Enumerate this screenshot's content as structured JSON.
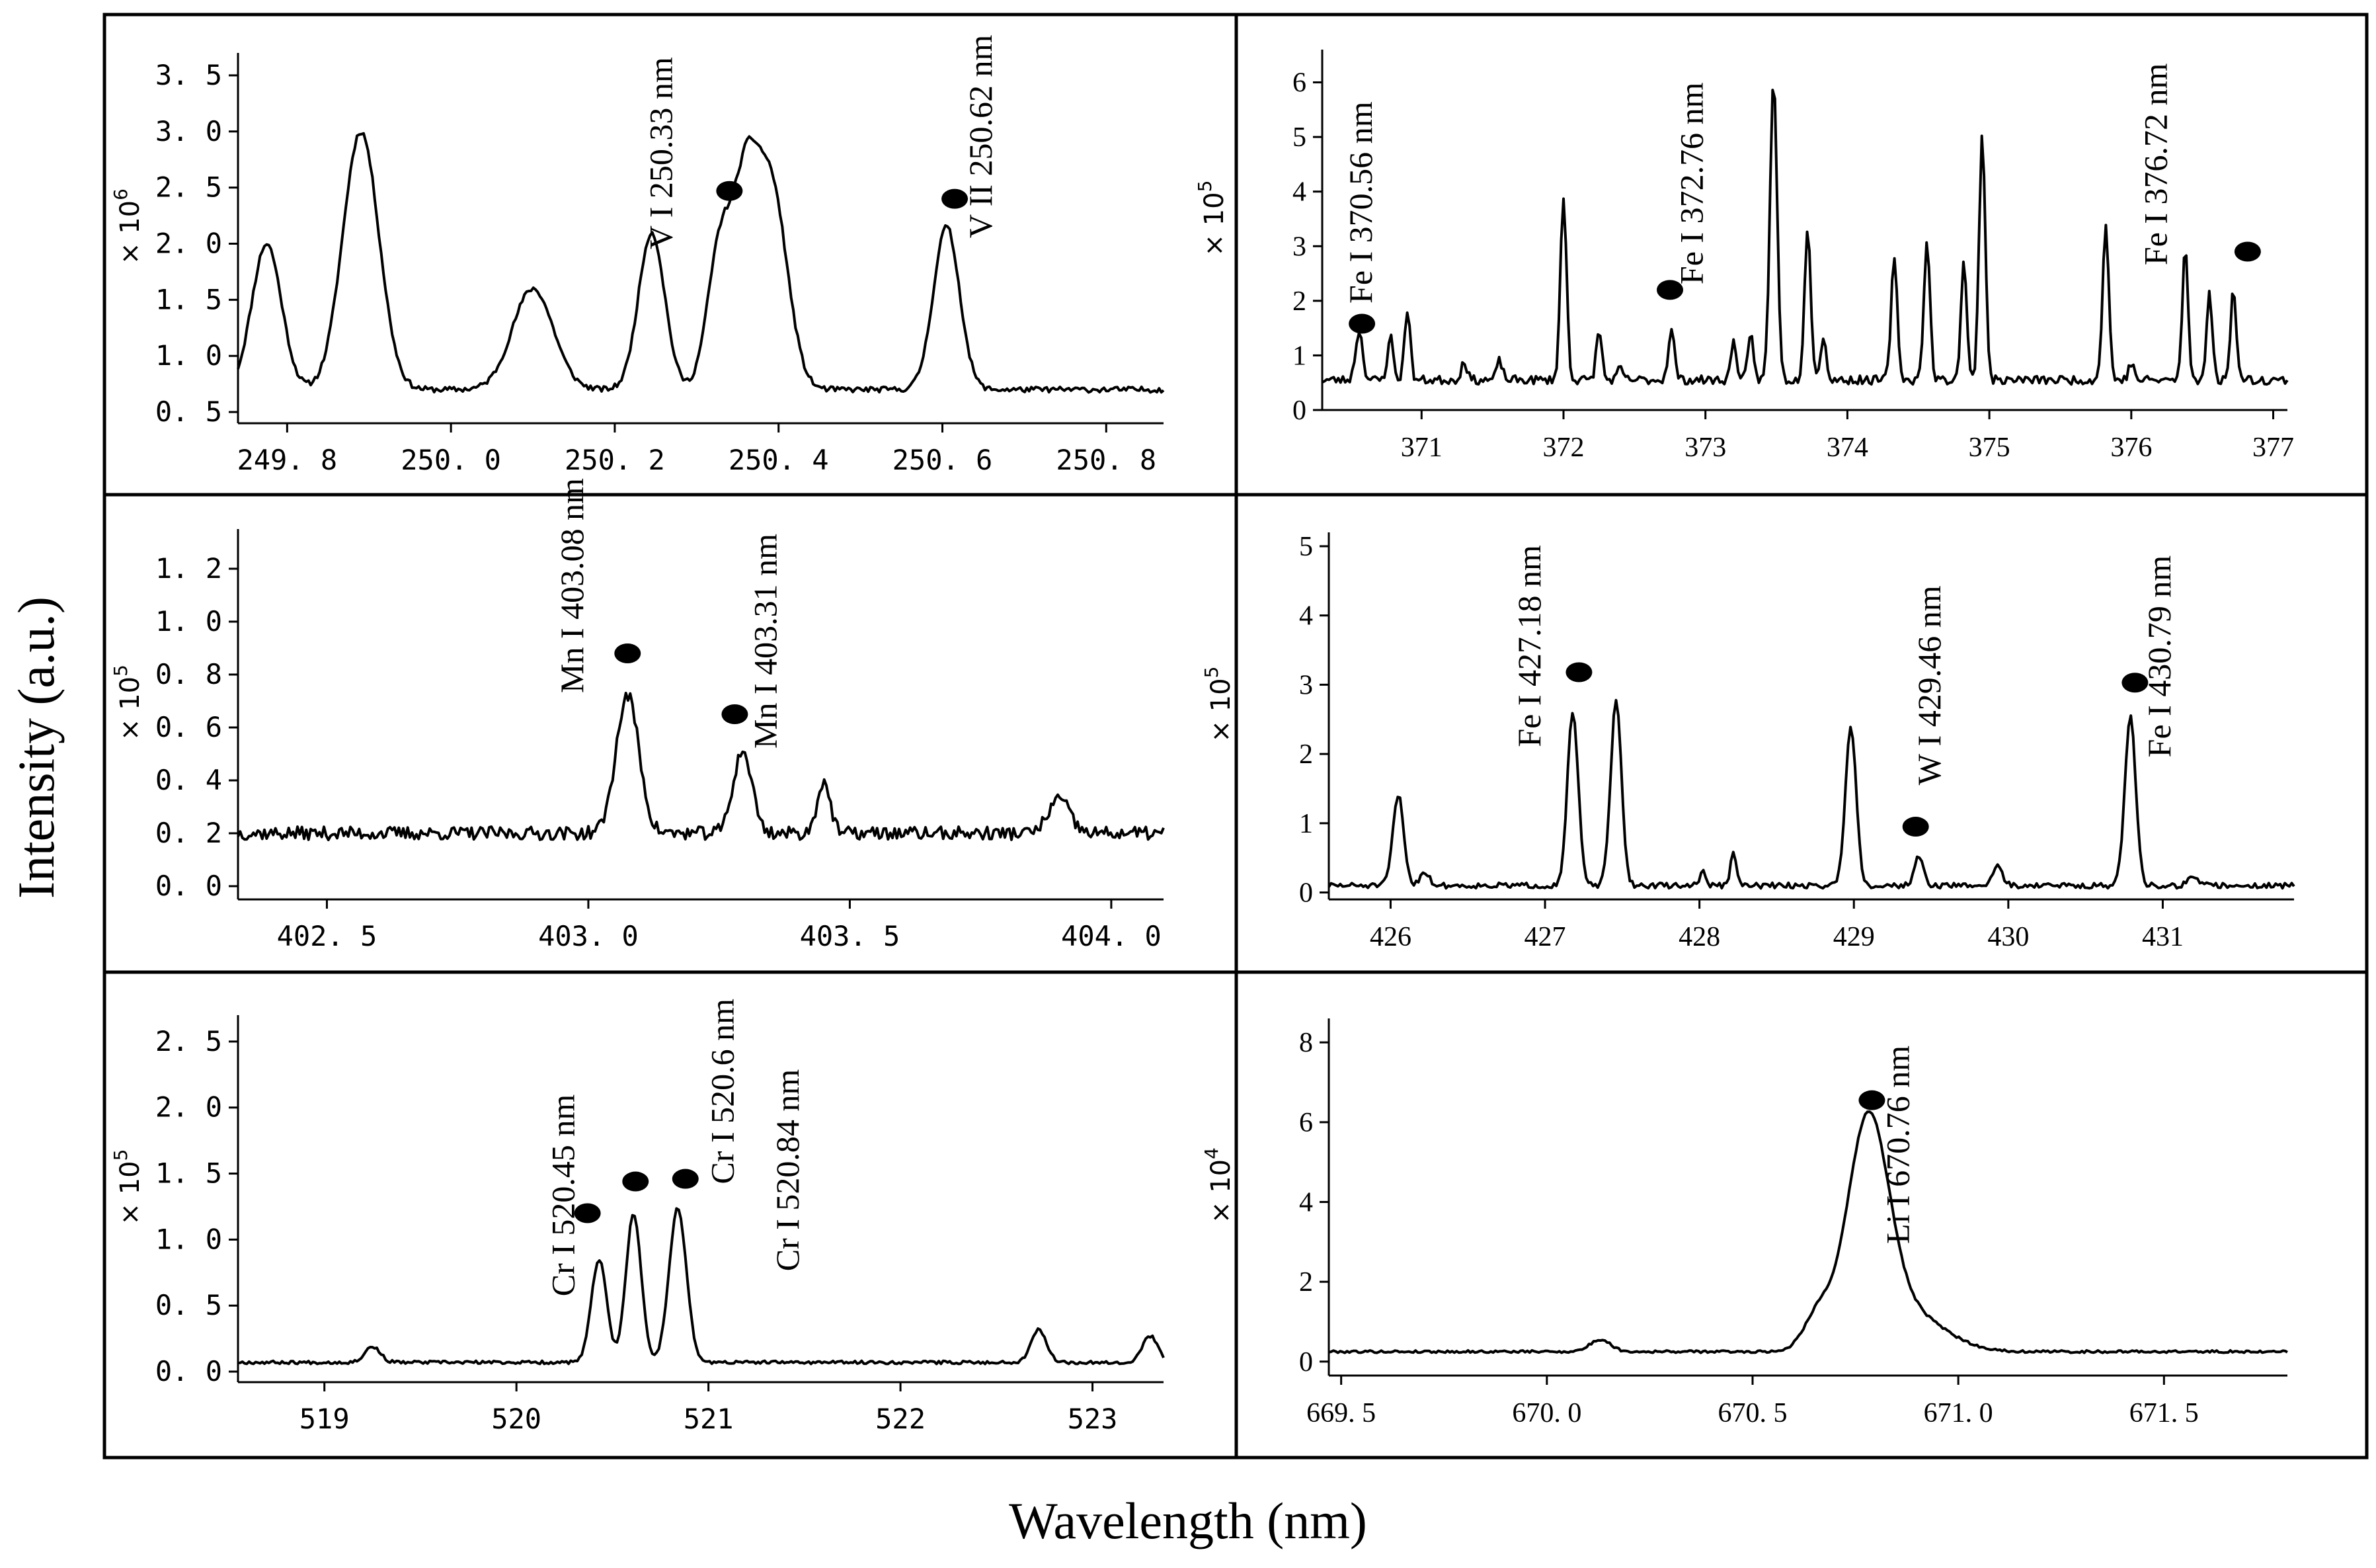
{
  "figure": {
    "xlabel": "Wavelength (nm)",
    "ylabel": "Intensity (a.u.)",
    "line_color": "#000000",
    "marker_color": "#000000",
    "background": "#ffffff"
  },
  "chart_data": [
    {
      "type": "line",
      "id": "panel-v",
      "xlim": [
        249.74,
        250.87
      ],
      "ylim": [
        0.4,
        3.7
      ],
      "xticks": [
        249.8,
        250.0,
        250.2,
        250.4,
        250.6,
        250.8
      ],
      "xtick_labels": [
        "249. 8",
        "250. 0",
        "250. 2",
        "250. 4",
        "250. 6",
        "250. 8"
      ],
      "yticks": [
        0.5,
        1.0,
        1.5,
        2.0,
        2.5,
        3.0,
        3.5
      ],
      "ytick_labels": [
        "0. 5",
        "1. 0",
        "1. 5",
        "2. 0",
        "2. 5",
        "3. 0",
        "3. 5"
      ],
      "ylabel_base": "× 10",
      "ylabel_exp": "6",
      "baseline": 0.7,
      "noise": 0.025,
      "seed": 11,
      "peaks": [
        [
          249.775,
          1.3,
          0.018
        ],
        [
          249.89,
          2.3,
          0.022
        ],
        [
          250.1,
          0.9,
          0.025
        ],
        [
          250.245,
          1.4,
          0.016
        ],
        [
          250.33,
          1.35,
          0.016
        ],
        [
          250.36,
          1.35,
          0.014
        ],
        [
          250.39,
          1.85,
          0.02
        ],
        [
          250.605,
          1.45,
          0.016
        ],
        [
          250.7,
          0.0,
          0.02
        ]
      ],
      "annotations": [
        {
          "text": "V I 250.33 nm",
          "x": 250.27,
          "y": 1.95
        },
        {
          "text": "V II 250.62 nm",
          "x": 250.66,
          "y": 2.05
        }
      ],
      "markers": [
        {
          "x": 250.34,
          "y": 2.47
        },
        {
          "x": 250.615,
          "y": 2.4
        }
      ]
    },
    {
      "type": "line",
      "id": "panel-fe1",
      "xlim": [
        370.3,
        377.1
      ],
      "ylim": [
        0,
        6.6
      ],
      "xticks": [
        371,
        372,
        373,
        374,
        375,
        376,
        377
      ],
      "xtick_labels": [
        "371",
        "372",
        "373",
        "374",
        "375",
        "376",
        "377"
      ],
      "yticks": [
        0,
        1,
        2,
        3,
        4,
        5,
        6
      ],
      "ytick_labels": [
        "0",
        "1",
        "2",
        "3",
        "4",
        "5",
        "6"
      ],
      "ylabel_base": "× 10",
      "ylabel_exp": "5",
      "baseline": 0.55,
      "noise": 0.08,
      "seed": 23,
      "peaks": [
        [
          370.56,
          0.9,
          0.025
        ],
        [
          370.78,
          0.8,
          0.02
        ],
        [
          370.9,
          1.3,
          0.02
        ],
        [
          371.3,
          0.35,
          0.02
        ],
        [
          371.55,
          0.35,
          0.02
        ],
        [
          372.0,
          3.3,
          0.022
        ],
        [
          372.25,
          0.9,
          0.02
        ],
        [
          372.4,
          0.2,
          0.02
        ],
        [
          372.76,
          0.9,
          0.022
        ],
        [
          373.2,
          0.7,
          0.02
        ],
        [
          373.32,
          0.8,
          0.02
        ],
        [
          373.48,
          5.5,
          0.025
        ],
        [
          373.72,
          2.8,
          0.022
        ],
        [
          373.83,
          0.8,
          0.02
        ],
        [
          374.33,
          2.2,
          0.022
        ],
        [
          374.56,
          2.5,
          0.022
        ],
        [
          374.82,
          2.2,
          0.02
        ],
        [
          374.95,
          4.5,
          0.022
        ],
        [
          375.82,
          2.8,
          0.022
        ],
        [
          376.0,
          0.3,
          0.02
        ],
        [
          376.38,
          2.4,
          0.02
        ],
        [
          376.55,
          1.6,
          0.02
        ],
        [
          376.72,
          1.7,
          0.02
        ]
      ],
      "annotations": [
        {
          "text": "Fe I 370.56 nm",
          "x": 370.65,
          "y": 1.95
        },
        {
          "text": "Fe I 372.76 nm",
          "x": 372.98,
          "y": 2.3
        },
        {
          "text": "Fe I 376.72 nm",
          "x": 376.25,
          "y": 2.65
        }
      ],
      "markers": [
        {
          "x": 370.58,
          "y": 1.58
        },
        {
          "x": 372.75,
          "y": 2.2
        },
        {
          "x": 376.82,
          "y": 2.9
        }
      ]
    },
    {
      "type": "line",
      "id": "panel-mn",
      "xlim": [
        402.33,
        404.1
      ],
      "ylim": [
        -0.05,
        1.35
      ],
      "xticks": [
        402.5,
        403.0,
        403.5,
        404.0
      ],
      "xtick_labels": [
        "402. 5",
        "403. 0",
        "403. 5",
        "404. 0"
      ],
      "yticks": [
        0,
        0.2,
        0.4,
        0.6,
        0.8,
        1.0,
        1.2
      ],
      "ytick_labels": [
        "0. 0",
        "0. 2",
        "0. 4",
        "0. 6",
        "0. 8",
        "1. 0",
        "1. 2"
      ],
      "ylabel_base": "× 10",
      "ylabel_exp": "5",
      "baseline": 0.2,
      "noise": 0.025,
      "seed": 37,
      "peaks": [
        [
          403.075,
          0.52,
          0.022
        ],
        [
          403.295,
          0.31,
          0.018
        ],
        [
          403.45,
          0.2,
          0.012
        ],
        [
          403.9,
          0.13,
          0.02
        ]
      ],
      "annotations": [
        {
          "text": "Mn I 403.08 nm",
          "x": 402.99,
          "y": 0.73
        },
        {
          "text": "Mn I 403.31 nm",
          "x": 403.36,
          "y": 0.52
        }
      ],
      "markers": [
        {
          "x": 403.075,
          "y": 0.88
        },
        {
          "x": 403.28,
          "y": 0.65
        }
      ]
    },
    {
      "type": "line",
      "id": "panel-fe2",
      "xlim": [
        425.6,
        431.85
      ],
      "ylim": [
        -0.1,
        5.2
      ],
      "xticks": [
        426,
        427,
        428,
        429,
        430,
        431
      ],
      "xtick_labels": [
        "426",
        "427",
        "428",
        "429",
        "430",
        "431"
      ],
      "yticks": [
        0,
        1,
        2,
        3,
        4,
        5
      ],
      "ytick_labels": [
        "0",
        "1",
        "2",
        "3",
        "4",
        "5"
      ],
      "ylabel_base": "× 10",
      "ylabel_exp": "5",
      "baseline": 0.1,
      "noise": 0.04,
      "seed": 51,
      "peaks": [
        [
          426.05,
          1.3,
          0.035
        ],
        [
          426.22,
          0.2,
          0.03
        ],
        [
          427.18,
          2.5,
          0.035
        ],
        [
          427.46,
          2.65,
          0.035
        ],
        [
          428.02,
          0.2,
          0.02
        ],
        [
          428.22,
          0.45,
          0.02
        ],
        [
          428.98,
          2.3,
          0.035
        ],
        [
          429.42,
          0.4,
          0.03
        ],
        [
          429.93,
          0.3,
          0.03
        ],
        [
          430.79,
          2.45,
          0.035
        ],
        [
          431.2,
          0.15,
          0.03
        ]
      ],
      "annotations": [
        {
          "text": "Fe I 427.18 nm",
          "x": 426.97,
          "y": 2.1
        },
        {
          "text": "W I 429.46 nm",
          "x": 429.56,
          "y": 1.55
        },
        {
          "text": "Fe I 430.79 nm",
          "x": 431.05,
          "y": 1.95
        }
      ],
      "markers": [
        {
          "x": 427.22,
          "y": 3.18
        },
        {
          "x": 429.4,
          "y": 0.95
        },
        {
          "x": 430.82,
          "y": 3.03
        }
      ]
    },
    {
      "type": "line",
      "id": "panel-cr",
      "xlim": [
        518.55,
        523.37
      ],
      "ylim": [
        -0.08,
        2.7
      ],
      "xticks": [
        519,
        520,
        521,
        522,
        523
      ],
      "xtick_labels": [
        "519",
        "520",
        "521",
        "522",
        "523"
      ],
      "yticks": [
        0,
        0.5,
        1.0,
        1.5,
        2.0,
        2.5
      ],
      "ytick_labels": [
        "0. 0",
        "0. 5",
        "1. 0",
        "1. 5",
        "2. 0",
        "2. 5"
      ],
      "ylabel_base": "× 10",
      "ylabel_exp": "5",
      "baseline": 0.07,
      "noise": 0.012,
      "seed": 67,
      "peaks": [
        [
          519.25,
          0.12,
          0.04
        ],
        [
          520.43,
          0.78,
          0.04
        ],
        [
          520.61,
          1.12,
          0.04
        ],
        [
          520.84,
          1.17,
          0.045
        ],
        [
          522.72,
          0.25,
          0.04
        ],
        [
          523.3,
          0.2,
          0.04
        ]
      ],
      "annotations": [
        {
          "text": "Cr I 520.45 nm",
          "x": 520.3,
          "y": 0.57
        },
        {
          "text": "Cr I 520.6 nm",
          "x": 521.13,
          "y": 1.42
        },
        {
          "text": "Cr I 520.84 nm",
          "x": 521.47,
          "y": 0.76
        }
      ],
      "markers": [
        {
          "x": 520.37,
          "y": 1.2
        },
        {
          "x": 520.62,
          "y": 1.44
        },
        {
          "x": 520.88,
          "y": 1.46
        }
      ]
    },
    {
      "type": "line",
      "id": "panel-li",
      "xlim": [
        669.47,
        671.8
      ],
      "ylim": [
        -0.35,
        8.6
      ],
      "xticks": [
        669.5,
        670.0,
        670.5,
        671.0,
        671.5
      ],
      "xtick_labels": [
        "669. 5",
        "670. 0",
        "670. 5",
        "671. 0",
        "671. 5"
      ],
      "yticks": [
        0,
        2,
        4,
        6,
        8
      ],
      "ytick_labels": [
        "0",
        "2",
        "4",
        "6",
        "8"
      ],
      "ylabel_base": "× 10",
      "ylabel_exp": "4",
      "baseline": 0.25,
      "noise": 0.03,
      "seed": 79,
      "peaks": [
        [
          670.13,
          0.3,
          0.025
        ],
        [
          670.66,
          0.9,
          0.035
        ],
        [
          670.78,
          5.4,
          0.05
        ],
        [
          670.87,
          1.0,
          0.09
        ]
      ],
      "annotations": [
        {
          "text": "Li I 670.76 nm",
          "x": 670.88,
          "y": 2.95
        }
      ],
      "markers": [
        {
          "x": 670.79,
          "y": 6.55
        }
      ]
    }
  ]
}
